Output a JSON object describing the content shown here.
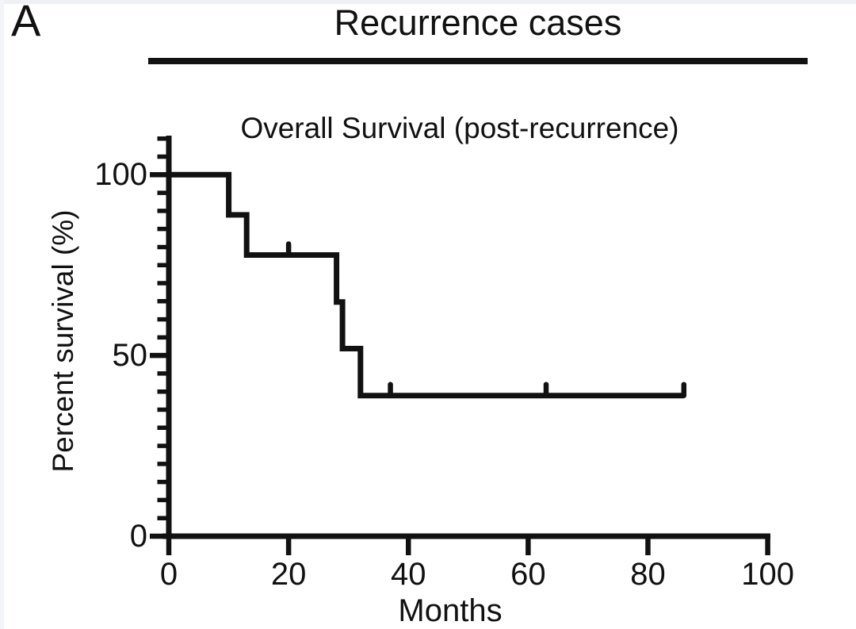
{
  "panel_label": "A",
  "header": {
    "title": "Recurrence cases"
  },
  "chart_data": {
    "type": "line",
    "subtype": "kaplan-meier-step",
    "title": "Recurrence cases",
    "subtitle": "Overall Survival (post-recurrence)",
    "xlabel": "Months",
    "ylabel": "Percent survival (%)",
    "xlim": [
      0,
      100
    ],
    "ylim": [
      0,
      100
    ],
    "x_ticks": [
      0,
      20,
      40,
      60,
      80,
      100
    ],
    "y_ticks": [
      0,
      50,
      100
    ],
    "y_minor_tick_step": 5,
    "y_axis_overshoot_pct": 10,
    "grid": false,
    "legend": false,
    "line_color": "#111111",
    "series": [
      {
        "name": "Overall Survival (post-recurrence)",
        "step_points": [
          [
            0,
            100
          ],
          [
            10,
            100
          ],
          [
            10,
            88.9
          ],
          [
            13,
            88.9
          ],
          [
            13,
            77.8
          ],
          [
            28,
            77.8
          ],
          [
            28,
            64.8
          ],
          [
            29,
            64.8
          ],
          [
            29,
            51.9
          ],
          [
            32,
            51.9
          ],
          [
            32,
            38.9
          ],
          [
            86,
            38.9
          ]
        ],
        "censor_marks": [
          [
            20,
            77.8
          ],
          [
            37,
            38.9
          ],
          [
            63,
            38.9
          ],
          [
            86,
            38.9
          ]
        ]
      }
    ]
  }
}
